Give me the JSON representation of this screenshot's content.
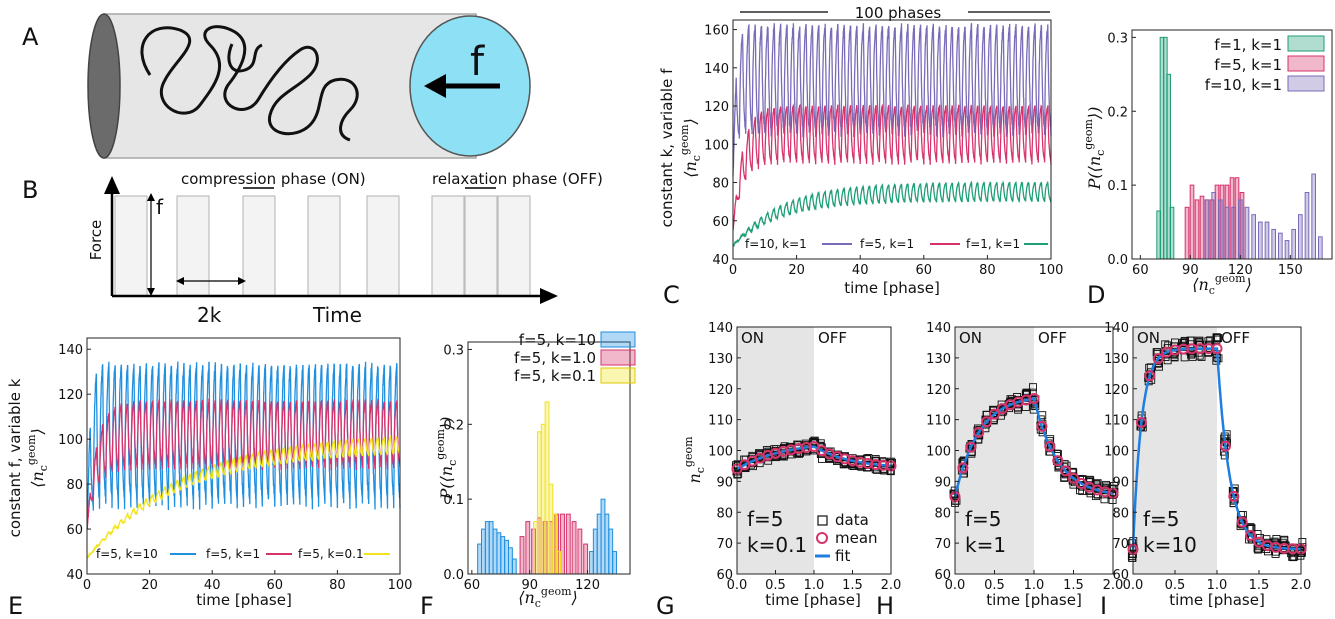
{
  "panel_letters": {
    "A": "A",
    "B": "B",
    "C": "C",
    "D": "D",
    "E": "E",
    "F": "F",
    "G": "G",
    "H": "H",
    "I": "I"
  },
  "schematic_a": {
    "force_label": "f"
  },
  "schematic_b": {
    "compression_label": "compression phase (ON)",
    "relaxation_label": "relaxation phase (OFF)",
    "force_axis": "Force",
    "time_axis": "Time",
    "height_label": "f",
    "width_label": "2k"
  },
  "colors": {
    "green": "#1f9e77",
    "magenta": "#d6336c",
    "purple": "#7a6bb8",
    "blue": "#1f8fe0",
    "yellow": "#f2e41c",
    "shade": "#e5e5e5",
    "fit": "#1f7fe0"
  },
  "chart_data": [
    {
      "id": "C",
      "type": "line",
      "title": "100 phases",
      "xlabel": "time [phase]",
      "ylabel_prefix": "constant k, variable f",
      "ylabel_math": "⟨n",
      "ylabel_sub": "c",
      "ylabel_sup": "geom",
      "ylabel_close": "⟩",
      "xlim": [
        0,
        100
      ],
      "ylim": [
        40,
        165
      ],
      "xticks": [
        0,
        20,
        40,
        60,
        80,
        100
      ],
      "yticks": [
        40,
        60,
        80,
        100,
        120,
        140,
        160
      ],
      "grid": false,
      "legend_position": "bottom",
      "series": [
        {
          "name": "f=10, k=1",
          "color": "purple",
          "start": 85,
          "low": 105,
          "high": 162,
          "tau": 1
        },
        {
          "name": "f=5, k=1",
          "color": "magenta",
          "start": 55,
          "low": 90,
          "high": 120,
          "tau": 3
        },
        {
          "name": "f=1, k=1",
          "color": "green",
          "start": 47,
          "low": 70,
          "high": 80,
          "tau": 15
        }
      ]
    },
    {
      "id": "D",
      "type": "bar",
      "xlabel_math": "⟨n",
      "xlabel_sub": "c",
      "xlabel_sup": "geom",
      "xlabel_close": "⟩",
      "ylabel_math": "P(⟨n",
      "ylabel_sub": "c",
      "ylabel_sup": "geom",
      "ylabel_close": "⟩)",
      "xlim": [
        55,
        175
      ],
      "ylim": [
        0,
        0.31
      ],
      "xticks": [
        60,
        90,
        120,
        150
      ],
      "yticks": [
        0.0,
        0.1,
        0.2,
        0.3
      ],
      "ytick_labels": [
        "0.0",
        "0.1",
        "0.2",
        "0.3"
      ],
      "legend_position": "top-right",
      "series": [
        {
          "name": "f=1, k=1",
          "color": "green",
          "centers": [
            71,
            73,
            75,
            77,
            79
          ],
          "values": [
            0.065,
            0.3,
            0.3,
            0.25,
            0.07
          ]
        },
        {
          "name": "f=5, k=1",
          "color": "magenta",
          "centers": [
            88,
            91,
            94,
            97,
            100,
            103,
            106,
            109,
            112,
            115,
            118,
            121
          ],
          "values": [
            0.07,
            0.1,
            0.08,
            0.085,
            0.08,
            0.08,
            0.1,
            0.1,
            0.1,
            0.11,
            0.11,
            0.09
          ]
        },
        {
          "name": "f=10, k=1",
          "color": "purple",
          "centers": [
            100,
            104,
            108,
            112,
            116,
            120,
            124,
            128,
            132,
            136,
            140,
            144,
            148,
            152,
            156,
            160,
            164,
            168
          ],
          "values": [
            0.08,
            0.09,
            0.08,
            0.07,
            0.07,
            0.08,
            0.07,
            0.06,
            0.05,
            0.05,
            0.04,
            0.035,
            0.025,
            0.04,
            0.06,
            0.09,
            0.115,
            0.03
          ]
        }
      ]
    },
    {
      "id": "E",
      "type": "line",
      "xlabel": "time [phase]",
      "ylabel_prefix": "constant f, variable k",
      "ylabel_math": "⟨n",
      "ylabel_sub": "c",
      "ylabel_sup": "geom",
      "ylabel_close": "⟩",
      "xlim": [
        0,
        100
      ],
      "ylim": [
        40,
        145
      ],
      "xticks": [
        0,
        20,
        40,
        60,
        80,
        100
      ],
      "yticks": [
        40,
        60,
        80,
        100,
        120,
        140
      ],
      "legend_position": "bottom",
      "series": [
        {
          "name": "f=5, k=10",
          "color": "blue",
          "start": 60,
          "low": 70,
          "high": 133,
          "tau": 1
        },
        {
          "name": "f=5, k=1",
          "color": "magenta",
          "start": 60,
          "low": 87,
          "high": 117,
          "tau": 3
        },
        {
          "name": "f=5, k=0.1",
          "color": "yellow",
          "start": 47,
          "low": 95,
          "high": 103,
          "tau": 30
        }
      ]
    },
    {
      "id": "F",
      "type": "bar",
      "xlabel_math": "⟨n",
      "xlabel_sub": "c",
      "xlabel_sup": "geom",
      "xlabel_close": "⟩",
      "ylabel_math": "P(⟨n",
      "ylabel_sub": "c",
      "ylabel_sup": "geom",
      "ylabel_close": "⟩)",
      "xlim": [
        58,
        142
      ],
      "ylim": [
        0,
        0.31
      ],
      "xticks": [
        60,
        90,
        120
      ],
      "yticks": [
        0.0,
        0.1,
        0.2,
        0.3
      ],
      "ytick_labels": [
        "0.0",
        "0.1",
        "0.2",
        "0.3"
      ],
      "legend_position": "top-right",
      "series": [
        {
          "name": "f=5, k=10",
          "color": "blue",
          "centers": [
            64,
            66,
            68,
            70,
            72,
            74,
            76,
            78,
            80,
            82,
            122,
            124,
            126,
            128,
            130,
            132,
            134
          ],
          "values": [
            0.04,
            0.06,
            0.07,
            0.07,
            0.06,
            0.055,
            0.05,
            0.045,
            0.035,
            0.02,
            0.03,
            0.06,
            0.08,
            0.1,
            0.08,
            0.06,
            0.03
          ]
        },
        {
          "name": "f=5, k=1.0",
          "color": "magenta",
          "centers": [
            86,
            89,
            92,
            95,
            98,
            101,
            104,
            107,
            110,
            113,
            116,
            119
          ],
          "values": [
            0.05,
            0.07,
            0.06,
            0.075,
            0.07,
            0.07,
            0.08,
            0.08,
            0.08,
            0.07,
            0.06,
            0.04
          ]
        },
        {
          "name": "f=5, k=0.1",
          "color": "yellow",
          "centers": [
            93,
            95,
            97,
            99,
            101,
            103,
            105
          ],
          "values": [
            0.07,
            0.19,
            0.2,
            0.23,
            0.12,
            0.08,
            0.03
          ]
        }
      ]
    },
    {
      "id": "G",
      "type": "scatter",
      "xlabel": "time [phase]",
      "ylabel_math": "n",
      "ylabel_sub": "c",
      "ylabel_sup": "geom",
      "xlim": [
        0,
        2
      ],
      "ylim": [
        60,
        140
      ],
      "xticks": [
        0.0,
        0.5,
        1.0,
        1.5,
        2.0
      ],
      "xtick_labels": [
        "0.0",
        "0.5",
        "1.0",
        "1.5",
        "2.0"
      ],
      "yticks": [
        60,
        70,
        80,
        90,
        100,
        110,
        120,
        130,
        140
      ],
      "on_label": "ON",
      "off_label": "OFF",
      "f_label": "f=5",
      "k_label": "k=0.1",
      "legend": {
        "data": "data",
        "mean": "mean",
        "fit": "fit"
      },
      "legend_position": "bottom-right",
      "series": [
        {
          "name": "mean",
          "y_min": 94,
          "y_max": 103,
          "tau_on": 0.6,
          "tau_off": 0.5,
          "spread": 1.8
        }
      ]
    },
    {
      "id": "H",
      "type": "scatter",
      "xlabel": "time [phase]",
      "xlim": [
        0,
        2
      ],
      "ylim": [
        60,
        140
      ],
      "xticks": [
        0.0,
        0.5,
        1.0,
        1.5,
        2.0
      ],
      "xtick_labels": [
        "0.0",
        "0.5",
        "1.0",
        "1.5",
        "2.0"
      ],
      "yticks": [
        60,
        70,
        80,
        90,
        100,
        110,
        120,
        130,
        140
      ],
      "on_label": "ON",
      "off_label": "OFF",
      "f_label": "f=5",
      "k_label": "k=1",
      "series": [
        {
          "name": "mean",
          "y_min": 85,
          "y_max": 118,
          "tau_on": 0.3,
          "tau_off": 0.3,
          "spread": 2.5
        }
      ]
    },
    {
      "id": "I",
      "type": "scatter",
      "xlabel": "time [phase]",
      "xlim": [
        0,
        2
      ],
      "ylim": [
        60,
        140
      ],
      "xticks": [
        0.0,
        0.5,
        1.0,
        1.5,
        2.0
      ],
      "xtick_labels": [
        "0.0",
        "0.5",
        "1.0",
        "1.5",
        "2.0"
      ],
      "yticks": [
        60,
        70,
        80,
        90,
        100,
        110,
        120,
        130,
        140
      ],
      "on_label": "ON",
      "off_label": "OFF",
      "f_label": "f=5",
      "k_label": "k=10",
      "series": [
        {
          "name": "mean",
          "y_min": 68,
          "y_max": 133,
          "tau_on": 0.1,
          "tau_off": 0.15,
          "spread": 2.8
        }
      ]
    }
  ]
}
